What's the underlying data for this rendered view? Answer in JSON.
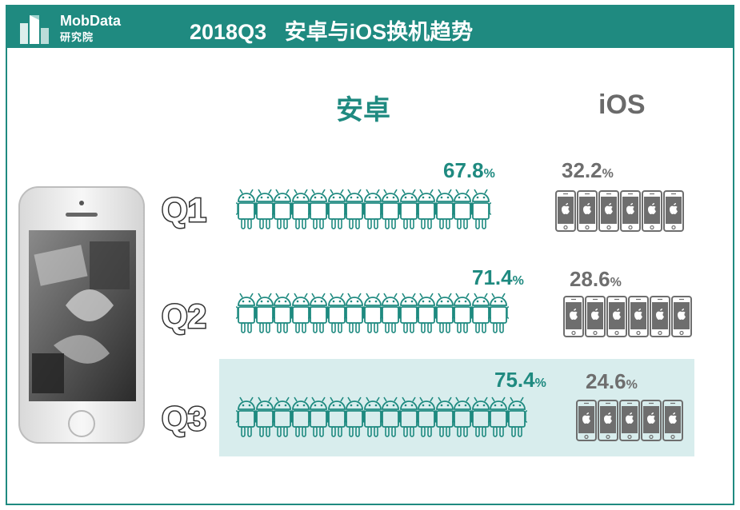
{
  "header": {
    "logo_name": "MobData",
    "logo_sub": "研究院",
    "title": "2018Q3   安卓与iOS换机趋势"
  },
  "columns": {
    "android": "安卓",
    "ios": "iOS"
  },
  "colors": {
    "android": "#1f8a80",
    "ios": "#6e6e6e",
    "highlight": "#d8eded"
  },
  "icons": {
    "android": "android-robot-icon",
    "ios": "iphone-apple-icon"
  },
  "chart_data": {
    "type": "pictogram",
    "categories": [
      "Q1",
      "Q2",
      "Q3"
    ],
    "series": [
      {
        "name": "安卓",
        "values": [
          67.8,
          71.4,
          75.4
        ],
        "labels": [
          "67.8",
          "71.4",
          "75.4"
        ]
      },
      {
        "name": "iOS",
        "values": [
          32.2,
          28.6,
          24.6
        ],
        "labels": [
          "32.2",
          "28.6",
          "24.6"
        ]
      }
    ],
    "unit": "%",
    "highlight": "Q3"
  }
}
